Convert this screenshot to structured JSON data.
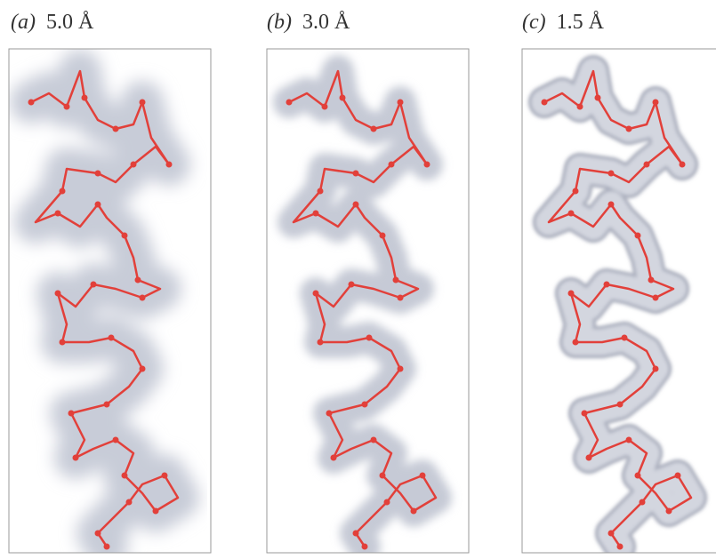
{
  "panels": [
    {
      "label": "(a)",
      "resolution": "5.0 Å"
    },
    {
      "label": "(b)",
      "resolution": "3.0 Å"
    },
    {
      "label": "(c)",
      "resolution": "1.5 Å"
    }
  ]
}
